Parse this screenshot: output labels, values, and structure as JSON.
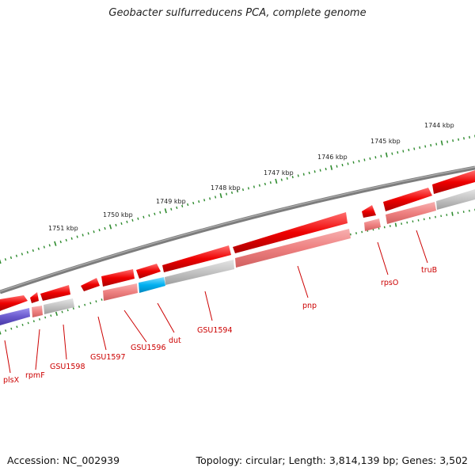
{
  "title": "Geobacter sulfurreducens PCA, complete genome",
  "footer": {
    "accession": "Accession: NC_002939",
    "stats": "Topology: circular; Length: 3,814,139 bp; Genes: 3,502"
  },
  "kbp_labels": [
    "1751 kbp",
    "1750 kbp",
    "1749 kbp",
    "1748 kbp",
    "1747 kbp",
    "1746 kbp",
    "1745 kbp",
    "1744 kbp"
  ],
  "gene_labels": [
    "plsX",
    "rpmF",
    "GSU1598",
    "GSU1597",
    "GSU1596",
    "dut",
    "GSU1594",
    "pnp",
    "rpsO",
    "truB"
  ],
  "colors": {
    "forward_cds": "#ff0000",
    "rna_lane": "#f08080",
    "gray_lane": "#c0c0c0",
    "purple_lane": "#6a5acd",
    "cyan_lane": "#00bfff",
    "backbone": "#808080",
    "tick": "#2e8b2e",
    "label": "#cc0000"
  }
}
